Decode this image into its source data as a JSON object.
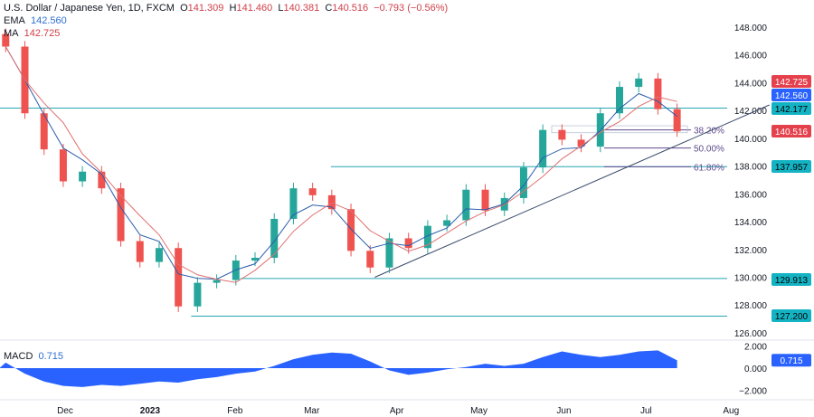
{
  "header": {
    "symbol": "U.S. Dollar / Japanese Yen, 1D, FXCM",
    "o_label": "O",
    "o": "141.309",
    "h_label": "H",
    "h": "141.460",
    "l_label": "L",
    "l": "140.381",
    "c_label": "C",
    "c": "140.516",
    "change": "−0.793 (−0.56%)",
    "ema_label": "EMA",
    "ema": "142.560",
    "ma_label": "MA",
    "ma": "142.725",
    "macd_label": "MACD",
    "macd": "0.715"
  },
  "colors": {
    "up": "#26a69a",
    "down": "#ef5350",
    "ema": "#2a5caa",
    "ma": "#e07070",
    "level": "#26a6b4",
    "macd": "#2962ff",
    "fib": "#5e4a8c",
    "trend": "#3a4a6b"
  },
  "chart_data": [
    {
      "type": "candlestick",
      "interval": "weekly approximation of 1D chart",
      "yticks": [
        "148.000",
        "146.000",
        "144.000",
        "142.000",
        "140.000",
        "138.000",
        "136.000",
        "134.000",
        "132.000",
        "130.000",
        "128.000",
        "126.000"
      ],
      "ylim": [
        125.5,
        149.5
      ],
      "xticks": [
        "Dec",
        "2023",
        "Feb",
        "Mar",
        "Apr",
        "May",
        "Jun",
        "Jul",
        "Aug"
      ],
      "closes": [
        {
          "d": "2022-11-07",
          "o": 147.5,
          "c": 146.6
        },
        {
          "d": "2022-11-14",
          "o": 146.6,
          "c": 141.8
        },
        {
          "d": "2022-11-21",
          "o": 141.8,
          "c": 139.2
        },
        {
          "d": "2022-11-28",
          "o": 139.2,
          "c": 136.9
        },
        {
          "d": "2022-12-05",
          "o": 136.9,
          "c": 137.6
        },
        {
          "d": "2022-12-12",
          "o": 137.6,
          "c": 136.4
        },
        {
          "d": "2022-12-19",
          "o": 136.4,
          "c": 132.6
        },
        {
          "d": "2022-12-26",
          "o": 132.6,
          "c": 131.1
        },
        {
          "d": "2023-01-02",
          "o": 131.1,
          "c": 132.1
        },
        {
          "d": "2023-01-09",
          "o": 132.1,
          "c": 127.9
        },
        {
          "d": "2023-01-16",
          "o": 127.9,
          "c": 129.6
        },
        {
          "d": "2023-01-23",
          "o": 129.6,
          "c": 129.8
        },
        {
          "d": "2023-01-30",
          "o": 129.8,
          "c": 131.2
        },
        {
          "d": "2023-02-06",
          "o": 131.2,
          "c": 131.4
        },
        {
          "d": "2023-02-13",
          "o": 131.4,
          "c": 134.2
        },
        {
          "d": "2023-02-20",
          "o": 134.2,
          "c": 136.4
        },
        {
          "d": "2023-02-27",
          "o": 136.4,
          "c": 135.9
        },
        {
          "d": "2023-03-06",
          "o": 135.9,
          "c": 134.9
        },
        {
          "d": "2023-03-13",
          "o": 134.9,
          "c": 131.9
        },
        {
          "d": "2023-03-20",
          "o": 131.9,
          "c": 130.7
        },
        {
          "d": "2023-03-27",
          "o": 130.7,
          "c": 132.8
        },
        {
          "d": "2023-04-03",
          "o": 132.8,
          "c": 132.1
        },
        {
          "d": "2023-04-10",
          "o": 132.1,
          "c": 133.7
        },
        {
          "d": "2023-04-17",
          "o": 133.7,
          "c": 134.1
        },
        {
          "d": "2023-04-24",
          "o": 134.1,
          "c": 136.3
        },
        {
          "d": "2023-05-01",
          "o": 136.3,
          "c": 134.8
        },
        {
          "d": "2023-05-08",
          "o": 134.8,
          "c": 135.7
        },
        {
          "d": "2023-05-15",
          "o": 135.7,
          "c": 137.9
        },
        {
          "d": "2023-05-22",
          "o": 137.9,
          "c": 140.6
        },
        {
          "d": "2023-05-29",
          "o": 140.6,
          "c": 139.9
        },
        {
          "d": "2023-06-05",
          "o": 139.9,
          "c": 139.4
        },
        {
          "d": "2023-06-12",
          "o": 139.4,
          "c": 141.8
        },
        {
          "d": "2023-06-19",
          "o": 141.8,
          "c": 143.7
        },
        {
          "d": "2023-06-26",
          "o": 143.7,
          "c": 144.3
        },
        {
          "d": "2023-07-03",
          "o": 144.3,
          "c": 142.1
        },
        {
          "d": "2023-07-10",
          "o": 142.1,
          "c": 140.5
        }
      ],
      "levels": [
        {
          "value": 142.177,
          "label": "142.177",
          "from": "2022-11-07"
        },
        {
          "value": 137.957,
          "label": "137.957",
          "from": "2023-03-08"
        },
        {
          "value": 129.913,
          "label": "129.913",
          "from": "2023-02-03"
        },
        {
          "value": 127.2,
          "label": "127.200",
          "from": "2023-01-16"
        }
      ],
      "fib": [
        {
          "label": "38.20%",
          "value": 140.6
        },
        {
          "label": "50.00%",
          "value": 139.3
        },
        {
          "label": "61.80%",
          "value": 137.95
        }
      ],
      "price_tags": [
        {
          "label": "142.725",
          "color": "#e5414d"
        },
        {
          "label": "142.560",
          "color": "#2962ff"
        },
        {
          "label": "142.177",
          "color": "#14b3c4"
        },
        {
          "label": "140.516",
          "color": "#e5414d"
        },
        {
          "label": "137.957",
          "color": "#14b3c4"
        },
        {
          "label": "129.913",
          "color": "#14b3c4"
        },
        {
          "label": "127.200",
          "color": "#14b3c4"
        }
      ],
      "trendline": [
        {
          "d": "2023-03-24",
          "v": 130.0
        },
        {
          "d": "2023-08-15",
          "v": 142.4
        }
      ]
    },
    {
      "type": "area",
      "name": "MACD",
      "yticks": [
        "2.000",
        "0.000",
        "−2.000"
      ],
      "values": [
        0.5,
        -0.5,
        -1.2,
        -1.6,
        -1.7,
        -1.5,
        -1.6,
        -1.4,
        -1.2,
        -1.3,
        -1.0,
        -0.8,
        -0.5,
        -0.3,
        0.2,
        0.8,
        1.2,
        1.4,
        1.3,
        0.6,
        -0.2,
        -0.6,
        -0.4,
        -0.1,
        0.1,
        0.4,
        0.2,
        0.4,
        1.0,
        1.5,
        1.2,
        1.0,
        1.2,
        1.5,
        1.6,
        0.7
      ]
    }
  ]
}
